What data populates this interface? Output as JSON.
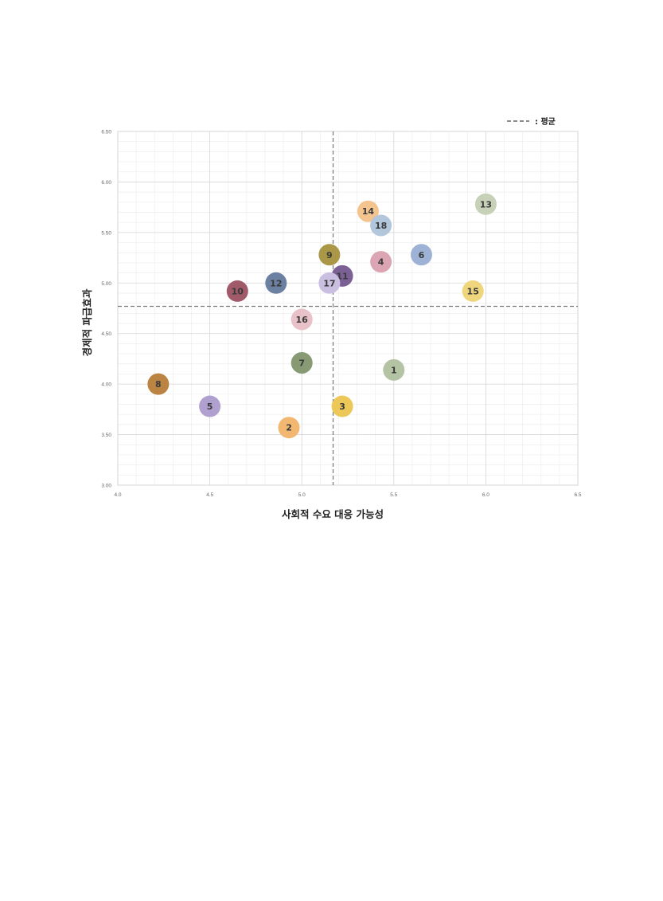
{
  "chart_data": {
    "type": "scatter",
    "title": "",
    "xlabel": "사회적 수요 대응 가능성",
    "ylabel": "경제적 파급효과",
    "xlim": [
      4.0,
      6.5
    ],
    "ylim": [
      3.0,
      6.5
    ],
    "x_ticks": [
      "4.0",
      "4.5",
      "5.0",
      "5.5",
      "6.0",
      "6.5"
    ],
    "y_ticks": [
      "3.00",
      "3.50",
      "4.00",
      "4.50",
      "5.00",
      "5.50",
      "6.00",
      "6.50"
    ],
    "grid": true,
    "legend": {
      "position": "top-right",
      "entries": [
        {
          "symbol": "dashed-line",
          "label": ": 평균"
        }
      ]
    },
    "mean": {
      "x": 5.17,
      "y": 4.77
    },
    "points": [
      {
        "label": "1",
        "x": 5.5,
        "y": 4.14,
        "color": "#b3c3a3"
      },
      {
        "label": "2",
        "x": 4.93,
        "y": 3.57,
        "color": "#f2b872"
      },
      {
        "label": "3",
        "x": 5.22,
        "y": 3.78,
        "color": "#ebc857"
      },
      {
        "label": "4",
        "x": 5.43,
        "y": 5.21,
        "color": "#dba5b3"
      },
      {
        "label": "5",
        "x": 4.5,
        "y": 3.78,
        "color": "#b0a0cf"
      },
      {
        "label": "6",
        "x": 5.65,
        "y": 5.28,
        "color": "#9db2d4"
      },
      {
        "label": "7",
        "x": 5.0,
        "y": 4.21,
        "color": "#879a74"
      },
      {
        "label": "8",
        "x": 4.22,
        "y": 4.0,
        "color": "#bc8443"
      },
      {
        "label": "9",
        "x": 5.15,
        "y": 5.28,
        "color": "#aa9748"
      },
      {
        "label": "10",
        "x": 4.65,
        "y": 4.92,
        "color": "#a05a6a"
      },
      {
        "label": "11",
        "x": 5.22,
        "y": 5.07,
        "color": "#7a6094"
      },
      {
        "label": "12",
        "x": 4.86,
        "y": 5.0,
        "color": "#6c80a2"
      },
      {
        "label": "13",
        "x": 6.0,
        "y": 5.78,
        "color": "#c6d1b8"
      },
      {
        "label": "14",
        "x": 5.36,
        "y": 5.71,
        "color": "#f4c48f"
      },
      {
        "label": "15",
        "x": 5.93,
        "y": 4.92,
        "color": "#efd67c"
      },
      {
        "label": "16",
        "x": 5.0,
        "y": 4.64,
        "color": "#e9c1c8"
      },
      {
        "label": "17",
        "x": 5.15,
        "y": 5.0,
        "color": "#cbbfe1"
      },
      {
        "label": "18",
        "x": 5.43,
        "y": 5.57,
        "color": "#b2c6dc"
      }
    ]
  }
}
